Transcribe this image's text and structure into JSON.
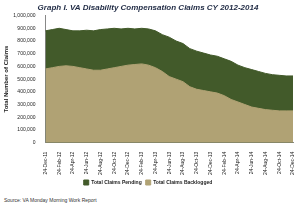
{
  "chart_data": {
    "type": "area",
    "title": "Graph I. VA Disability Compensation Claims CY 2012-2014",
    "y_label": "Total Number of Claims",
    "source": "Source: VA Monday Morning Work Report",
    "categories": [
      "24-Dec-11",
      null,
      "24-Feb-12",
      null,
      "24-Apr-12",
      null,
      "24-Jun-12",
      null,
      "24-Aug-12",
      null,
      "24-Oct-12",
      null,
      "24-Dec-12",
      null,
      "24-Feb-13",
      null,
      "24-Apr-13",
      null,
      "24-Jun-13",
      null,
      "24-Aug-13",
      null,
      "24-Oct-13",
      null,
      "24-Dec-13",
      null,
      "24-Feb-14",
      null,
      "24-Apr-14",
      null,
      "24-Jun-14",
      null,
      "24-Aug-14",
      null,
      "24-Oct-14",
      null,
      "24-Dec-14"
    ],
    "series": [
      {
        "name": "Total Claims Pending",
        "color": "#425a2a",
        "values": [
          880000,
          890000,
          900000,
          890000,
          880000,
          880000,
          885000,
          880000,
          890000,
          895000,
          900000,
          895000,
          900000,
          895000,
          900000,
          895000,
          880000,
          850000,
          830000,
          800000,
          780000,
          740000,
          720000,
          705000,
          690000,
          680000,
          660000,
          640000,
          610000,
          590000,
          575000,
          560000,
          545000,
          535000,
          530000,
          525000,
          525000
        ]
      },
      {
        "name": "Total Claims Backlogged",
        "color": "#b0a274",
        "values": [
          580000,
          590000,
          600000,
          605000,
          600000,
          590000,
          580000,
          570000,
          570000,
          580000,
          590000,
          600000,
          610000,
          615000,
          620000,
          610000,
          590000,
          560000,
          520000,
          500000,
          480000,
          440000,
          420000,
          410000,
          400000,
          390000,
          370000,
          340000,
          320000,
          300000,
          280000,
          270000,
          260000,
          255000,
          250000,
          250000,
          250000
        ]
      }
    ],
    "stacked": false,
    "ylim": [
      0,
      1000000
    ],
    "yticks": [
      0,
      {
        "value": 100000,
        "label": "100,000"
      },
      {
        "value": 200000,
        "label": "200,000"
      },
      {
        "value": 300000,
        "label": "300,000"
      },
      {
        "value": 400000,
        "label": "400,000"
      },
      {
        "value": 500000,
        "label": "500,000"
      },
      {
        "value": 600000,
        "label": "600,000"
      },
      {
        "value": 700000,
        "label": "700,000"
      },
      {
        "value": 800000,
        "label": "800,000"
      },
      {
        "value": 900000,
        "label": "900,000"
      },
      {
        "value": 1000000,
        "label": "1,000,000"
      }
    ],
    "grid": false,
    "legend": "bottom"
  }
}
